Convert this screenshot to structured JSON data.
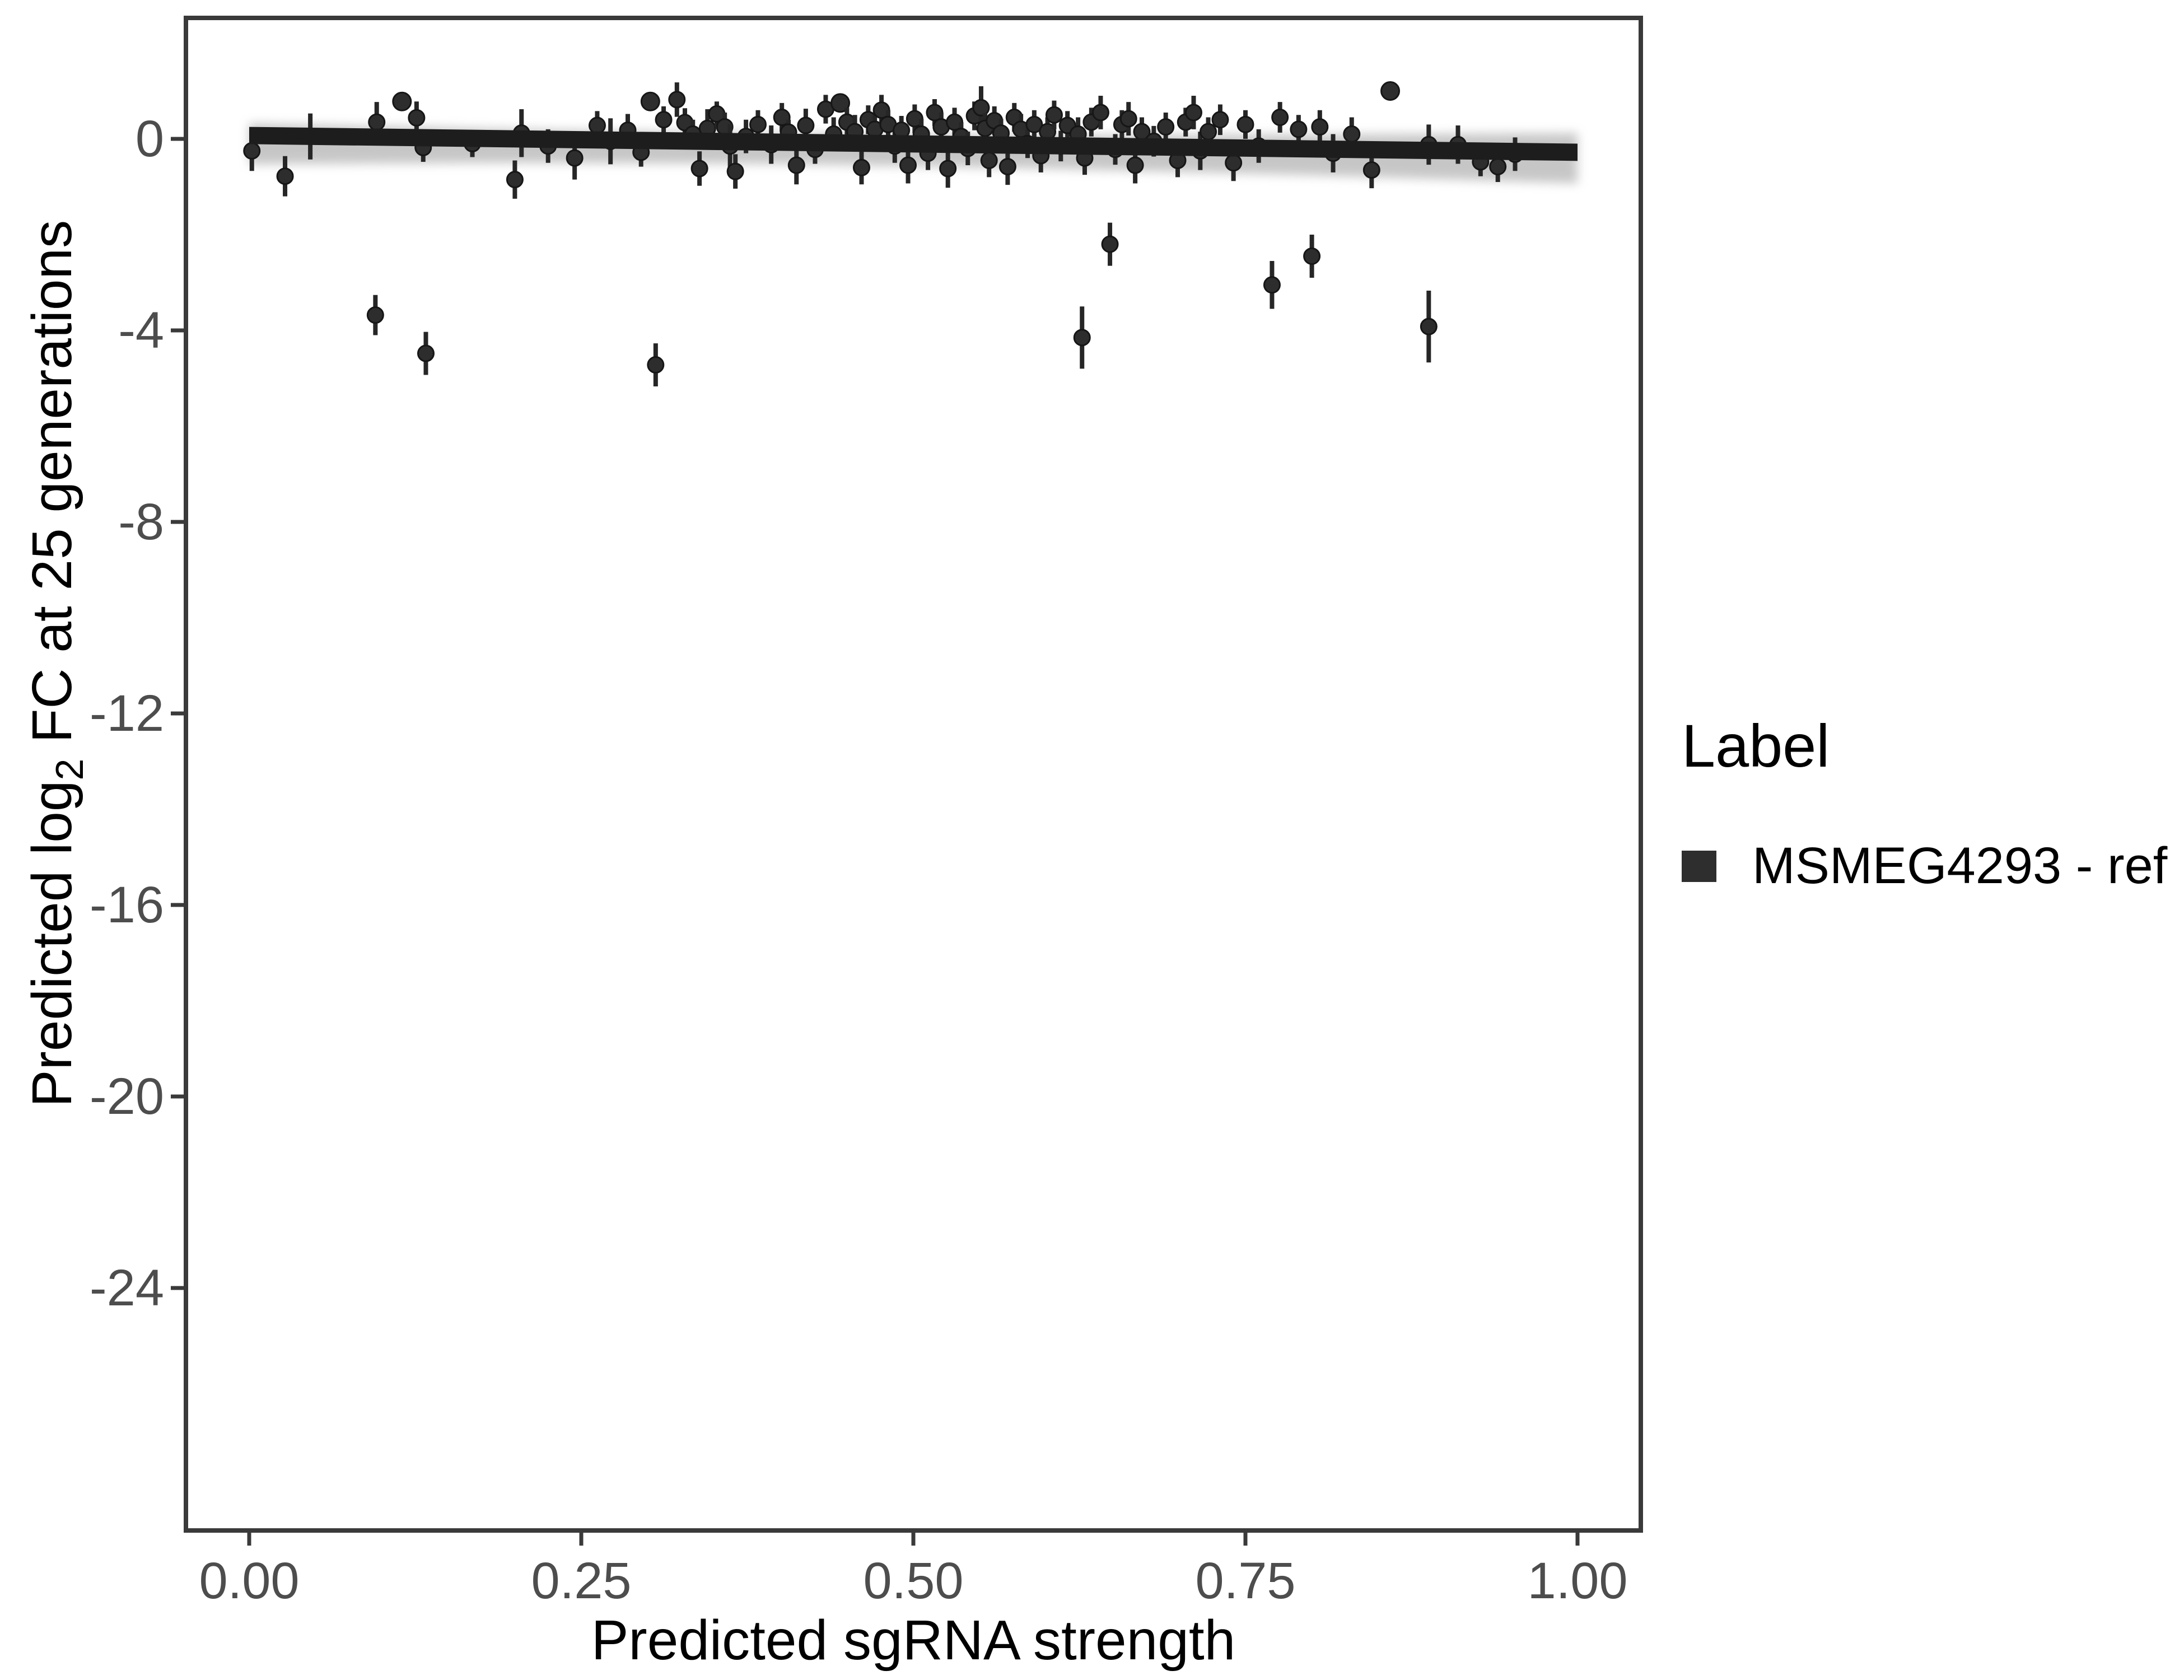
{
  "chart_data": {
    "type": "scatter",
    "title": "",
    "xlabel": "Predicted sgRNA strength",
    "ylabel": "Predicted log2 FC at 25 generations",
    "ylabel_parts": {
      "pre": "Predicted  log",
      "sub": "2",
      "post": " FC at 25 generations"
    },
    "x_ticks": {
      "labels": [
        "0.00",
        "0.25",
        "0.50",
        "0.75",
        "1.00"
      ],
      "values": [
        0,
        0.25,
        0.5,
        0.75,
        1.0
      ]
    },
    "y_ticks": {
      "labels": [
        "0",
        "-4",
        "-8",
        "-12",
        "-16",
        "-20",
        "-24"
      ],
      "values": [
        0,
        -4,
        -8,
        -12,
        -16,
        -20,
        -24
      ]
    },
    "xlim": [
      -0.048,
      1.048
    ],
    "ylim": [
      -29.1,
      2.55
    ],
    "grid": false,
    "legend": {
      "title": "Label",
      "position": "right",
      "entries": [
        {
          "label": "MSMEG4293 - ref",
          "swatch_color": "#2e2e2e"
        }
      ]
    },
    "regression_line": {
      "intercept": 0.07,
      "slope": -0.35,
      "half_thickness": 0.18,
      "color": "#1d1d1d",
      "x_range": [
        0,
        1
      ]
    },
    "ci_ribbon": {
      "x": [
        0.0,
        0.2,
        0.4,
        0.6,
        0.8,
        1.0
      ],
      "upper": [
        0.32,
        0.2,
        0.11,
        0.08,
        0.09,
        0.12
      ],
      "lower": [
        -0.53,
        -0.5,
        -0.52,
        -0.62,
        -0.76,
        -0.93
      ],
      "color": "#999999"
    },
    "points_format": "[x, y, err_half] ; err_half 0 = dot without error bar",
    "points": [
      [
        0.002,
        -0.25,
        0.42
      ],
      [
        0.027,
        -0.78,
        0.42
      ],
      [
        0.046,
        0.05,
        0.48
      ],
      [
        0.096,
        0.35,
        0.42
      ],
      [
        0.115,
        0.78,
        0
      ],
      [
        0.126,
        0.44,
        0.34
      ],
      [
        0.131,
        -0.18,
        0.3
      ],
      [
        0.095,
        -3.68,
        0.42
      ],
      [
        0.133,
        -4.48,
        0.45
      ],
      [
        0.168,
        -0.1,
        0.28
      ],
      [
        0.2,
        -0.85,
        0.4
      ],
      [
        0.205,
        0.12,
        0.5
      ],
      [
        0.225,
        -0.15,
        0.35
      ],
      [
        0.245,
        -0.4,
        0.45
      ],
      [
        0.262,
        0.28,
        0.3
      ],
      [
        0.272,
        -0.05,
        0.48
      ],
      [
        0.285,
        0.18,
        0.34
      ],
      [
        0.295,
        -0.28,
        0.3
      ],
      [
        0.306,
        -4.72,
        0.45
      ],
      [
        0.302,
        0.78,
        0
      ],
      [
        0.312,
        0.4,
        0.28
      ],
      [
        0.322,
        0.82,
        0.36
      ],
      [
        0.328,
        0.34,
        0.3
      ],
      [
        0.334,
        0.1,
        0.3
      ],
      [
        0.339,
        -0.62,
        0.36
      ],
      [
        0.345,
        0.22,
        0.4
      ],
      [
        0.352,
        0.52,
        0.26
      ],
      [
        0.358,
        0.25,
        0.3
      ],
      [
        0.362,
        -0.15,
        0.46
      ],
      [
        0.366,
        -0.68,
        0.36
      ],
      [
        0.374,
        0.05,
        0.35
      ],
      [
        0.383,
        0.3,
        0.3
      ],
      [
        0.393,
        -0.12,
        0.4
      ],
      [
        0.401,
        0.45,
        0.3
      ],
      [
        0.406,
        0.14,
        0.26
      ],
      [
        0.412,
        -0.55,
        0.4
      ],
      [
        0.419,
        0.28,
        0.35
      ],
      [
        0.426,
        -0.22,
        0.3
      ],
      [
        0.434,
        0.62,
        0.3
      ],
      [
        0.44,
        0.1,
        0.35
      ],
      [
        0.445,
        0.75,
        0
      ],
      [
        0.45,
        0.35,
        0.3
      ],
      [
        0.456,
        0.15,
        0.35
      ],
      [
        0.461,
        -0.6,
        0.35
      ],
      [
        0.466,
        0.4,
        0.3
      ],
      [
        0.471,
        0.2,
        0.28
      ],
      [
        0.476,
        0.6,
        0.32
      ],
      [
        0.481,
        0.3,
        0.3
      ],
      [
        0.486,
        -0.15,
        0.35
      ],
      [
        0.491,
        0.18,
        0.3
      ],
      [
        0.496,
        -0.55,
        0.38
      ],
      [
        0.501,
        0.42,
        0.3
      ],
      [
        0.506,
        0.1,
        0.32
      ],
      [
        0.511,
        -0.3,
        0.35
      ],
      [
        0.516,
        0.55,
        0.28
      ],
      [
        0.521,
        0.25,
        0.3
      ],
      [
        0.526,
        -0.62,
        0.4
      ],
      [
        0.531,
        0.35,
        0.3
      ],
      [
        0.536,
        0.05,
        0.3
      ],
      [
        0.541,
        -0.2,
        0.35
      ],
      [
        0.546,
        0.48,
        0.3
      ],
      [
        0.551,
        0.65,
        0.45
      ],
      [
        0.554,
        0.22,
        0.32
      ],
      [
        0.557,
        -0.45,
        0.35
      ],
      [
        0.561,
        0.38,
        0.3
      ],
      [
        0.566,
        0.12,
        0.3
      ],
      [
        0.571,
        -0.58,
        0.38
      ],
      [
        0.576,
        0.45,
        0.3
      ],
      [
        0.581,
        0.2,
        0.32
      ],
      [
        0.586,
        -0.1,
        0.3
      ],
      [
        0.591,
        0.3,
        0.3
      ],
      [
        0.596,
        -0.35,
        0.35
      ],
      [
        0.601,
        0.15,
        0.3
      ],
      [
        0.606,
        0.5,
        0.3
      ],
      [
        0.611,
        -0.15,
        0.32
      ],
      [
        0.616,
        0.28,
        0.3
      ],
      [
        0.624,
        0.1,
        0.35
      ],
      [
        0.629,
        -0.4,
        0.35
      ],
      [
        0.634,
        0.35,
        0.3
      ],
      [
        0.641,
        0.55,
        0.35
      ],
      [
        0.648,
        -2.2,
        0.45
      ],
      [
        0.627,
        -4.15,
        0.65
      ],
      [
        0.652,
        -0.22,
        0.32
      ],
      [
        0.657,
        0.3,
        0.3
      ],
      [
        0.662,
        0.42,
        0.35
      ],
      [
        0.667,
        -0.55,
        0.38
      ],
      [
        0.672,
        0.15,
        0.3
      ],
      [
        0.681,
        -0.05,
        0.32
      ],
      [
        0.69,
        0.25,
        0.3
      ],
      [
        0.699,
        -0.45,
        0.35
      ],
      [
        0.705,
        0.35,
        0.3
      ],
      [
        0.711,
        0.55,
        0.35
      ],
      [
        0.716,
        -0.25,
        0.4
      ],
      [
        0.722,
        0.15,
        0.3
      ],
      [
        0.731,
        0.4,
        0.32
      ],
      [
        0.741,
        -0.5,
        0.38
      ],
      [
        0.75,
        0.3,
        0.3
      ],
      [
        0.76,
        -0.15,
        0.35
      ],
      [
        0.77,
        -3.05,
        0.5
      ],
      [
        0.776,
        0.45,
        0.32
      ],
      [
        0.79,
        0.2,
        0.3
      ],
      [
        0.8,
        -2.45,
        0.45
      ],
      [
        0.806,
        0.25,
        0.35
      ],
      [
        0.816,
        -0.3,
        0.4
      ],
      [
        0.83,
        0.1,
        0.35
      ],
      [
        0.845,
        -0.65,
        0.38
      ],
      [
        0.859,
        1.0,
        0
      ],
      [
        0.888,
        -0.12,
        0.42
      ],
      [
        0.888,
        -3.92,
        0.75
      ],
      [
        0.91,
        -0.12,
        0.4
      ],
      [
        0.927,
        -0.48,
        0.3
      ],
      [
        0.94,
        -0.58,
        0.32
      ],
      [
        0.953,
        -0.32,
        0.35
      ]
    ]
  },
  "style": {
    "point_color": "#2d2d2d",
    "point_stroke": "#161616",
    "errorbar_color": "#262626",
    "axis_color": "#3a3a3a",
    "tick_label_color": "#4d4d4d",
    "title_color": "#000000",
    "background": "#ffffff"
  }
}
